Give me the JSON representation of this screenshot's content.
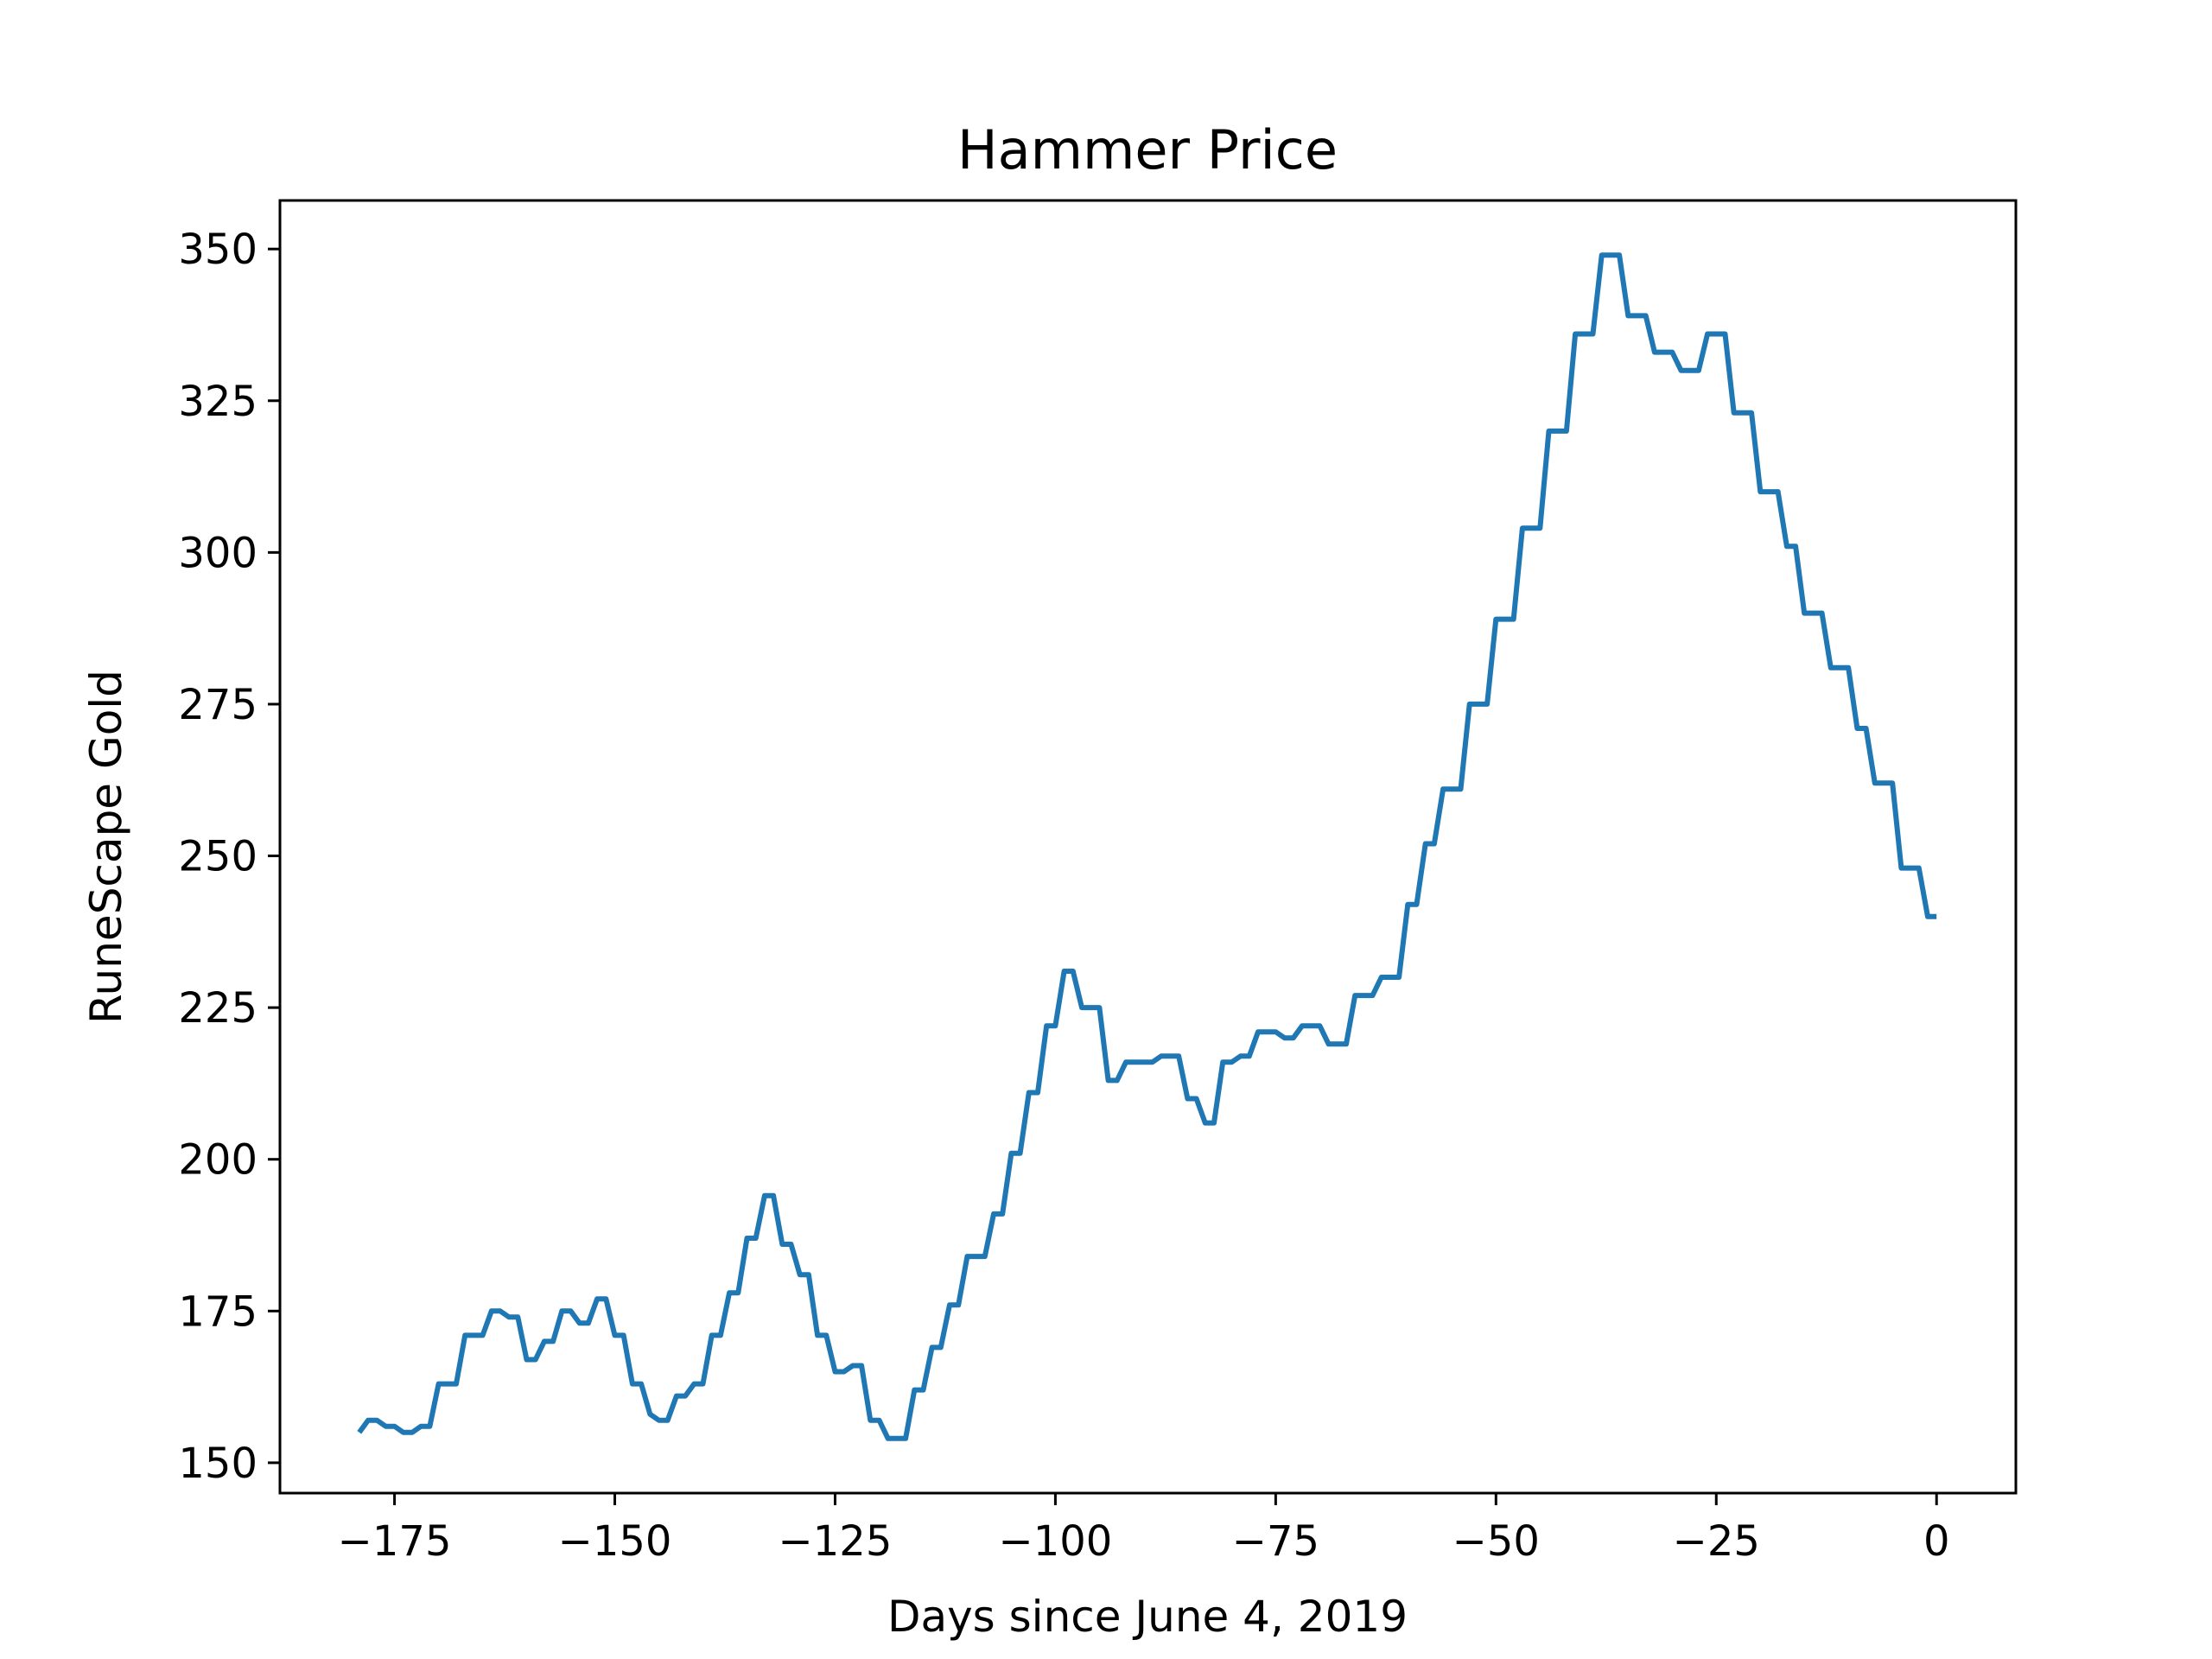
{
  "chart_data": {
    "type": "line",
    "title": "Hammer Price",
    "xlabel": "Days since June 4, 2019",
    "ylabel": "RuneScape Gold",
    "xlim": [
      -188,
      9
    ],
    "ylim": [
      145,
      358
    ],
    "xticks": [
      -175,
      -150,
      -125,
      -100,
      -75,
      -50,
      -25,
      0
    ],
    "xtick_labels": [
      "−175",
      "−150",
      "−125",
      "−100",
      "−75",
      "−50",
      "−25",
      "0"
    ],
    "yticks": [
      150,
      175,
      200,
      225,
      250,
      275,
      300,
      325,
      350
    ],
    "ytick_labels": [
      "150",
      "175",
      "200",
      "225",
      "250",
      "275",
      "300",
      "325",
      "350"
    ],
    "grid": false,
    "series": [
      {
        "color": "#1f77b4",
        "x": [
          -179,
          -178,
          -177,
          -176,
          -175,
          -174,
          -173,
          -172,
          -171,
          -170,
          -169,
          -168,
          -167,
          -166,
          -165,
          -164,
          -163,
          -162,
          -161,
          -160,
          -159,
          -158,
          -157,
          -156,
          -155,
          -154,
          -153,
          -152,
          -151,
          -150,
          -149,
          -148,
          -147,
          -146,
          -145,
          -144,
          -143,
          -142,
          -141,
          -140,
          -139,
          -138,
          -137,
          -136,
          -135,
          -134,
          -133,
          -132,
          -131,
          -130,
          -129,
          -128,
          -127,
          -126,
          -125,
          -124,
          -123,
          -122,
          -121,
          -120,
          -119,
          -118,
          -117,
          -116,
          -115,
          -114,
          -113,
          -112,
          -111,
          -110,
          -109,
          -108,
          -107,
          -106,
          -105,
          -104,
          -103,
          -102,
          -101,
          -100,
          -99,
          -98,
          -97,
          -96,
          -95,
          -94,
          -93,
          -92,
          -91,
          -90,
          -89,
          -88,
          -87,
          -86,
          -85,
          -84,
          -83,
          -82,
          -81,
          -80,
          -79,
          -78,
          -77,
          -76,
          -75,
          -74,
          -73,
          -72,
          -71,
          -70,
          -69,
          -68,
          -67,
          -66,
          -65,
          -64,
          -63,
          -62,
          -61,
          -60,
          -59,
          -58,
          -57,
          -56,
          -55,
          -54,
          -53,
          -52,
          -51,
          -50,
          -49,
          -48,
          -47,
          -46,
          -45,
          -44,
          -43,
          -42,
          -41,
          -40,
          -39,
          -38,
          -37,
          -36,
          -35,
          -34,
          -33,
          -32,
          -31,
          -30,
          -29,
          -28,
          -27,
          -26,
          -25,
          -24,
          -23,
          -22,
          -21,
          -20,
          -19,
          -18,
          -17,
          -16,
          -15,
          -14,
          -13,
          -12,
          -11,
          -10,
          -9,
          -8,
          -7,
          -6,
          -5,
          -4,
          -3,
          -2,
          -1,
          0
        ],
        "y": [
          155,
          157,
          157,
          156,
          156,
          155,
          155,
          156,
          156,
          163,
          163,
          163,
          171,
          171,
          171,
          175,
          175,
          174,
          174,
          167,
          167,
          170,
          170,
          175,
          175,
          173,
          173,
          177,
          177,
          171,
          171,
          163,
          163,
          158,
          157,
          157,
          161,
          161,
          163,
          163,
          171,
          171,
          178,
          178,
          187,
          187,
          194,
          194,
          186,
          186,
          181,
          181,
          171,
          171,
          165,
          165,
          166,
          166,
          157,
          157,
          154,
          154,
          154,
          162,
          162,
          169,
          169,
          176,
          176,
          184,
          184,
          184,
          191,
          191,
          201,
          201,
          211,
          211,
          222,
          222,
          231,
          231,
          225,
          225,
          225,
          213,
          213,
          216,
          216,
          216,
          216,
          217,
          217,
          217,
          210,
          210,
          206,
          206,
          216,
          216,
          217,
          217,
          221,
          221,
          221,
          220,
          220,
          222,
          222,
          222,
          219,
          219,
          219,
          227,
          227,
          227,
          230,
          230,
          230,
          242,
          242,
          252,
          252,
          261,
          261,
          261,
          275,
          275,
          275,
          289,
          289,
          289,
          304,
          304,
          304,
          320,
          320,
          320,
          336,
          336,
          336,
          349,
          349,
          349,
          339,
          339,
          339,
          333,
          333,
          333,
          330,
          330,
          330,
          336,
          336,
          336,
          323,
          323,
          323,
          310,
          310,
          310,
          301,
          301,
          290,
          290,
          290,
          281,
          281,
          281,
          271,
          271,
          262,
          262,
          262,
          248,
          248,
          248,
          240,
          240
        ]
      }
    ]
  }
}
